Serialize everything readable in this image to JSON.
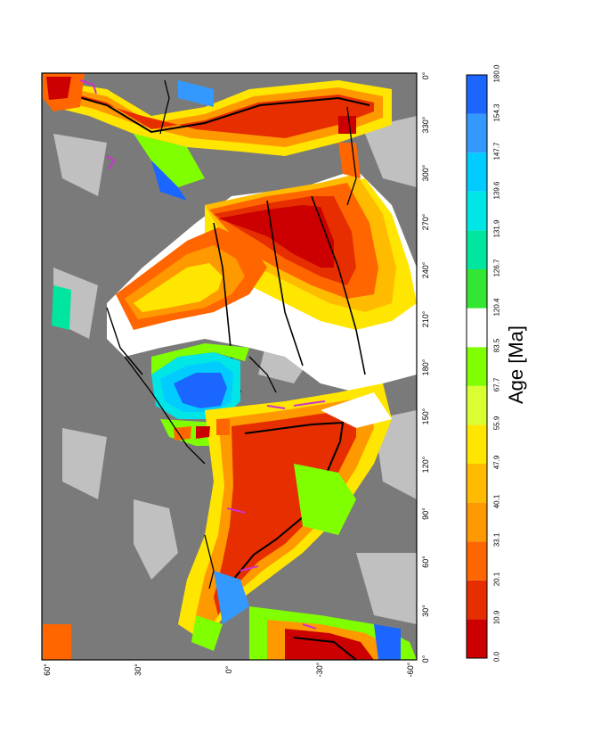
{
  "map": {
    "lon_ticks": [
      "0°",
      "30°",
      "60°",
      "90°",
      "120°",
      "150°",
      "180°",
      "210°",
      "240°",
      "270°",
      "300°",
      "330°",
      "0°"
    ],
    "lat_ticks": [
      "60°",
      "30°",
      "0°",
      "-30°",
      "-60°"
    ],
    "lat_values": [
      60,
      30,
      0,
      -30,
      -60
    ]
  },
  "colorbar": {
    "label": "Age [Ma]",
    "ticks": [
      "0.0",
      "10.9",
      "20.1",
      "33.1",
      "40.1",
      "47.9",
      "55.9",
      "67.7",
      "83.5",
      "120.4",
      "126.7",
      "131.9",
      "139.6",
      "147.7",
      "154.3",
      "180.0"
    ],
    "colors": [
      "#cc0000",
      "#e62e00",
      "#ff6600",
      "#ff9900",
      "#ffbb00",
      "#ffe600",
      "#d9ff33",
      "#80ff00",
      "#ffffff",
      "#33e633",
      "#00e6a0",
      "#00e6e6",
      "#00ccff",
      "#3399ff",
      "#1a66ff"
    ]
  }
}
